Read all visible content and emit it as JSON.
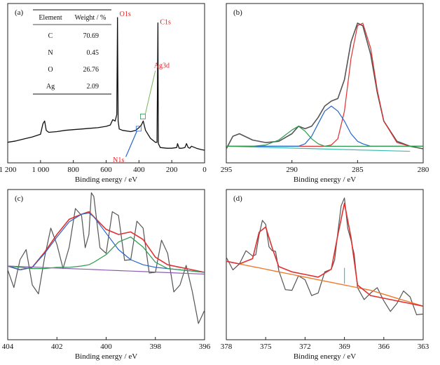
{
  "chart_data": [
    {
      "panel": "(a)",
      "type": "line",
      "xlabel": "Binding energy / eV",
      "xlim": [
        1200,
        0
      ],
      "xticks": [
        "1 200",
        "1 000",
        "800",
        "600",
        "400",
        "200",
        "0"
      ],
      "annotations": [
        "O1s",
        "C1s",
        "Ag3d",
        "N1s"
      ],
      "table": {
        "headers": [
          "Element",
          "Weight / %"
        ],
        "rows": [
          [
            "C",
            "70.69"
          ],
          [
            "N",
            "0.45"
          ],
          [
            "O",
            "26.76"
          ],
          [
            "Ag",
            "2.09"
          ]
        ]
      },
      "series": [
        {
          "x": [
            1200,
            1150,
            1100,
            1050,
            1000,
            985,
            975,
            965,
            950,
            900,
            850,
            800,
            750,
            700,
            650,
            600,
            575,
            560,
            545,
            535,
            531,
            527,
            520,
            500,
            450,
            420,
            400,
            385,
            374,
            368,
            360,
            330,
            300,
            290,
            284.6,
            282,
            270,
            230,
            200,
            170,
            165,
            155,
            140,
            120,
            110,
            100,
            90,
            80,
            50,
            20,
            0
          ],
          "y": [
            0.06,
            0.07,
            0.085,
            0.1,
            0.12,
            0.2,
            0.22,
            0.15,
            0.135,
            0.14,
            0.15,
            0.155,
            0.16,
            0.165,
            0.17,
            0.18,
            0.19,
            0.23,
            0.22,
            0.27,
            1.0,
            0.22,
            0.16,
            0.15,
            0.14,
            0.15,
            0.17,
            0.19,
            0.22,
            0.19,
            0.15,
            0.09,
            0.06,
            0.06,
            0.96,
            0.05,
            0.02,
            0.015,
            0.015,
            0.02,
            0.05,
            0.015,
            0.015,
            0.02,
            0.05,
            0.02,
            0.015,
            0.03,
            0.015,
            0.005,
            0.0
          ]
        }
      ]
    },
    {
      "panel": "(b)",
      "type": "line",
      "xlabel": "Binding energy / eV",
      "xlim": [
        295,
        280
      ],
      "xticks": [
        "295",
        "290",
        "285",
        "280"
      ],
      "x": [
        295,
        294.5,
        294,
        293,
        292,
        291,
        290,
        289.5,
        289,
        288.5,
        288,
        287.5,
        287,
        286.5,
        286,
        285.5,
        285,
        284.6,
        284,
        283.5,
        283,
        282,
        281,
        280
      ],
      "series": [
        {
          "y": [
            0.0,
            0.1,
            0.12,
            0.07,
            0.05,
            0.06,
            0.12,
            0.18,
            0.16,
            0.18,
            0.25,
            0.34,
            0.38,
            0.4,
            0.55,
            0.85,
            1.0,
            0.98,
            0.75,
            0.45,
            0.22,
            0.06,
            0.02,
            0.0
          ],
          "color": "#555555"
        },
        {
          "y": [
            0.0,
            0.0,
            0.0,
            0.0,
            0.0,
            0.0,
            0.0,
            0.0,
            0.0,
            0.0,
            0.0,
            0.0,
            0.01,
            0.06,
            0.28,
            0.7,
            0.96,
            0.98,
            0.78,
            0.45,
            0.2,
            0.03,
            0.0,
            0.0
          ],
          "color": "#e03030"
        },
        {
          "y": [
            0.0,
            0.0,
            0.0,
            0.0,
            0.0,
            0.0,
            0.0,
            0.0,
            0.02,
            0.08,
            0.18,
            0.28,
            0.32,
            0.28,
            0.2,
            0.1,
            0.04,
            0.02,
            0.0,
            0.0,
            0.0,
            0.0,
            0.0,
            0.0
          ],
          "color": "#2266cc"
        },
        {
          "y": [
            0.0,
            0.0,
            0.0,
            0.0,
            0.01,
            0.05,
            0.13,
            0.16,
            0.12,
            0.06,
            0.02,
            0.0,
            0.0,
            0.0,
            0.0,
            0.0,
            0.0,
            0.0,
            0.0,
            0.0,
            0.0,
            0.0,
            0.0,
            0.0
          ],
          "color": "#2a9a4a"
        }
      ]
    },
    {
      "panel": "(c)",
      "type": "line",
      "xlabel": "Binding energy / eV",
      "xlim": [
        404,
        396
      ],
      "xticks": [
        "404",
        "402",
        "400",
        "398",
        "396"
      ],
      "x": [
        404,
        403.5,
        403,
        402.5,
        402,
        401.5,
        401,
        400.7,
        400.5,
        400,
        399.5,
        399,
        398.5,
        398,
        397.5,
        397,
        396.5,
        396
      ],
      "series": [
        {
          "y": [
            0.45,
            0.42,
            0.44,
            0.56,
            0.7,
            0.82,
            0.86,
            0.88,
            0.84,
            0.74,
            0.7,
            0.72,
            0.66,
            0.52,
            0.46,
            0.44,
            0.42,
            0.4
          ],
          "color": "#e03030"
        },
        {
          "y": [
            0.45,
            0.42,
            0.44,
            0.55,
            0.68,
            0.8,
            0.86,
            0.87,
            0.84,
            0.71,
            0.58,
            0.5,
            0.46,
            0.44,
            0.43,
            0.42,
            0.41,
            0.4
          ],
          "color": "#2266cc"
        },
        {
          "y": [
            0.45,
            0.44,
            0.43,
            0.43,
            0.44,
            0.44,
            0.45,
            0.46,
            0.48,
            0.54,
            0.64,
            0.68,
            0.6,
            0.48,
            0.43,
            0.42,
            0.41,
            0.4
          ],
          "color": "#2a9a4a"
        },
        {
          "y": [
            0.45,
            0.446,
            0.442,
            0.438,
            0.434,
            0.43,
            0.426,
            0.424,
            0.422,
            0.418,
            0.414,
            0.41,
            0.406,
            0.402,
            0.398,
            0.394,
            0.39,
            0.386
          ],
          "color": "#8b5db0"
        }
      ],
      "raw": {
        "y": [
          0.42,
          0.5,
          0.3,
          0.52,
          0.62,
          0.6,
          0.85,
          0.7,
          1.0,
          0.55,
          0.85,
          0.5,
          0.75,
          0.4,
          0.55,
          0.3,
          0.25,
          0.1
        ],
        "color": "#555555"
      }
    },
    {
      "panel": "(d)",
      "type": "line",
      "xlabel": "Binding energy / eV",
      "xlim": [
        378,
        363
      ],
      "xticks": [
        "378",
        "375",
        "372",
        "369",
        "366",
        "363"
      ],
      "x": [
        378,
        377,
        376,
        375.5,
        375,
        374.5,
        374,
        373,
        372,
        371,
        370,
        369.5,
        369,
        368.5,
        368,
        367,
        366,
        365,
        364,
        363
      ],
      "series": [
        {
          "y": [
            0.52,
            0.5,
            0.54,
            0.74,
            0.78,
            0.62,
            0.48,
            0.44,
            0.42,
            0.4,
            0.46,
            0.72,
            0.96,
            0.7,
            0.34,
            0.26,
            0.24,
            0.22,
            0.2,
            0.18
          ],
          "color": "#e03030"
        },
        {
          "y": [
            0.52,
            0.5,
            0.48,
            0.47,
            0.46,
            0.45,
            0.44,
            0.42,
            0.4,
            0.38,
            0.36,
            0.35,
            0.34,
            0.33,
            0.32,
            0.3,
            0.27,
            0.24,
            0.21,
            0.18
          ],
          "color": "#f07a2a"
        },
        {
          "y": [
            0.0,
            0.0,
            0.0,
            0.0,
            0.0,
            0.0,
            0.0,
            0.0,
            0.0,
            0.0,
            0.0,
            0.0,
            0.12,
            0.0,
            0.0,
            0.0,
            0.0,
            0.0,
            0.0,
            0.0
          ],
          "color": "#3ac0d0"
        }
      ],
      "raw": {
        "y": [
          0.55,
          0.5,
          0.56,
          0.72,
          0.8,
          0.6,
          0.45,
          0.3,
          0.38,
          0.28,
          0.46,
          0.74,
          1.0,
          0.68,
          0.32,
          0.28,
          0.22,
          0.2,
          0.25,
          0.12
        ],
        "color": "#555555"
      }
    }
  ]
}
